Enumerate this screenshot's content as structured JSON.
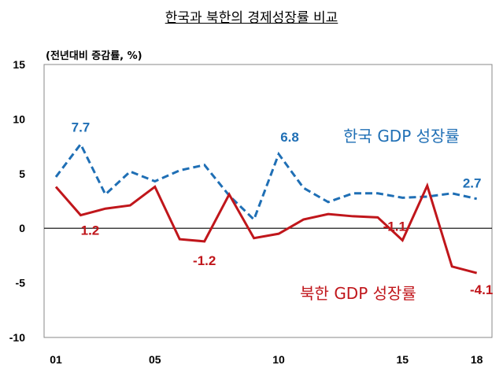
{
  "chart_data": {
    "type": "line",
    "title": "한국과 북한의 경제성장률 비교",
    "ylabel": "(전년대비 증감률, %)",
    "ylim": [
      -10,
      15
    ],
    "yticks": [
      "15",
      "10",
      "5",
      "0",
      "-5",
      "-10"
    ],
    "x": [
      2001,
      2002,
      2003,
      2004,
      2005,
      2006,
      2007,
      2008,
      2009,
      2010,
      2011,
      2012,
      2013,
      2014,
      2015,
      2016,
      2017,
      2018
    ],
    "xticks": [
      {
        "x": 2001,
        "label": "01"
      },
      {
        "x": 2005,
        "label": "05"
      },
      {
        "x": 2010,
        "label": "10"
      },
      {
        "x": 2015,
        "label": "15"
      },
      {
        "x": 2018,
        "label": "18"
      }
    ],
    "grid": false,
    "series": [
      {
        "name": "한국 GDP 성장률",
        "color": "#1f6fb5",
        "style": "dashed",
        "values": [
          4.7,
          7.7,
          3.1,
          5.2,
          4.3,
          5.3,
          5.8,
          3.0,
          0.8,
          6.8,
          3.7,
          2.4,
          3.2,
          3.2,
          2.8,
          2.9,
          3.2,
          2.7
        ],
        "annotations": [
          {
            "x": 2002,
            "label": "7.7"
          },
          {
            "x": 2010,
            "label": "6.8"
          },
          {
            "x": 2018,
            "label": "2.7"
          }
        ]
      },
      {
        "name": "북한 GDP 성장률",
        "color": "#c0161b",
        "style": "solid",
        "values": [
          3.8,
          1.2,
          1.8,
          2.1,
          3.8,
          -1.0,
          -1.2,
          3.1,
          -0.9,
          -0.5,
          0.8,
          1.3,
          1.1,
          1.0,
          -1.1,
          3.9,
          -3.5,
          -4.1
        ],
        "annotations": [
          {
            "x": 2002,
            "label": "1.2"
          },
          {
            "x": 2007,
            "label": "-1.2"
          },
          {
            "x": 2015,
            "label": "-1.1"
          },
          {
            "x": 2018,
            "label": "-4.1"
          }
        ]
      }
    ]
  }
}
